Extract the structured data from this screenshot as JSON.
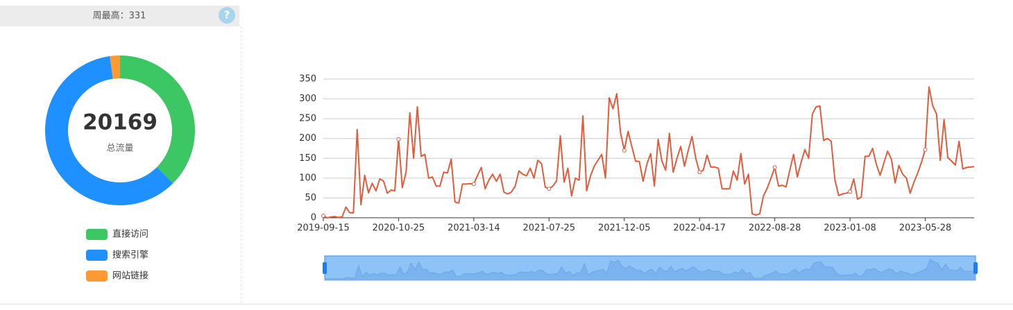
{
  "header": {
    "title": "周最高：331",
    "help": "?"
  },
  "chart_data": [
    {
      "type": "pie",
      "center_value": 20169,
      "center_label": "总流量",
      "categories": [
        "直接访问",
        "搜索引擎",
        "网站链接"
      ],
      "values": [
        7560,
        12170,
        439
      ],
      "colors": [
        "#3cc664",
        "#1e90ff",
        "#ff9933"
      ]
    },
    {
      "type": "line",
      "color": "#e15b3c",
      "ylim": [
        0,
        350
      ],
      "yticks": [
        0,
        50,
        100,
        150,
        200,
        250,
        300,
        350
      ],
      "grid": true,
      "categories": [
        "2019-09-15",
        null,
        null,
        null,
        null,
        null,
        null,
        null,
        null,
        null,
        null,
        null,
        null,
        null,
        null,
        null,
        null,
        null,
        null,
        null,
        "2020-10-25",
        null,
        null,
        null,
        null,
        null,
        null,
        null,
        null,
        null,
        null,
        null,
        null,
        null,
        null,
        null,
        null,
        null,
        null,
        null,
        "2021-03-14",
        null,
        null,
        null,
        null,
        null,
        null,
        null,
        null,
        null,
        null,
        null,
        null,
        null,
        null,
        null,
        null,
        null,
        null,
        null,
        "2021-07-25",
        null,
        null,
        null,
        null,
        null,
        null,
        null,
        null,
        null,
        null,
        null,
        null,
        null,
        null,
        null,
        null,
        null,
        null,
        null,
        "2021-12-05",
        null,
        null,
        null,
        null,
        null,
        null,
        null,
        null,
        null,
        null,
        null,
        null,
        null,
        null,
        null,
        null,
        null,
        null,
        null,
        "2022-04-17",
        null,
        null,
        null,
        null,
        null,
        null,
        null,
        null,
        null,
        null,
        null,
        null,
        null,
        null,
        null,
        null,
        null,
        null,
        null,
        "2022-08-28",
        null,
        null,
        null,
        null,
        null,
        null,
        null,
        null,
        null,
        null,
        null,
        null,
        null,
        null,
        null,
        null,
        null,
        null,
        null,
        "2023-01-08",
        null,
        null,
        null,
        null,
        null,
        null,
        null,
        null,
        null,
        null,
        null,
        null,
        null,
        null,
        null,
        null,
        null,
        null,
        null,
        "2023-05-28",
        null,
        null,
        null,
        null,
        null,
        null,
        null,
        null,
        null,
        null,
        null,
        null,
        null
      ],
      "values": [
        5,
        0,
        2,
        3,
        1,
        2,
        27,
        13,
        12,
        223,
        33,
        107,
        63,
        87,
        68,
        98,
        93,
        62,
        70,
        68,
        198,
        76,
        115,
        265,
        150,
        280,
        155,
        160,
        100,
        103,
        80,
        80,
        115,
        113,
        148,
        40,
        37,
        85,
        85,
        86,
        85,
        107,
        127,
        73,
        95,
        110,
        92,
        110,
        65,
        60,
        65,
        80,
        118,
        110,
        106,
        125,
        100,
        145,
        137,
        77,
        73,
        80,
        93,
        207,
        90,
        125,
        55,
        100,
        95,
        257,
        68,
        105,
        130,
        145,
        160,
        100,
        303,
        275,
        313,
        215,
        170,
        218,
        180,
        143,
        142,
        92,
        135,
        162,
        80,
        198,
        143,
        120,
        213,
        115,
        150,
        180,
        130,
        170,
        205,
        150,
        115,
        120,
        158,
        128,
        128,
        125,
        73,
        73,
        73,
        118,
        95,
        162,
        85,
        110,
        10,
        7,
        10,
        55,
        75,
        100,
        127,
        80,
        82,
        78,
        120,
        160,
        103,
        140,
        172,
        150,
        262,
        280,
        282,
        195,
        200,
        193,
        95,
        56,
        60,
        62,
        66,
        98,
        47,
        52,
        155,
        155,
        175,
        135,
        107,
        138,
        168,
        148,
        88,
        132,
        110,
        100,
        62,
        90,
        113,
        140,
        172,
        330,
        282,
        262,
        145,
        248,
        152,
        143,
        133,
        193,
        123,
        127,
        128,
        129
      ]
    }
  ]
}
